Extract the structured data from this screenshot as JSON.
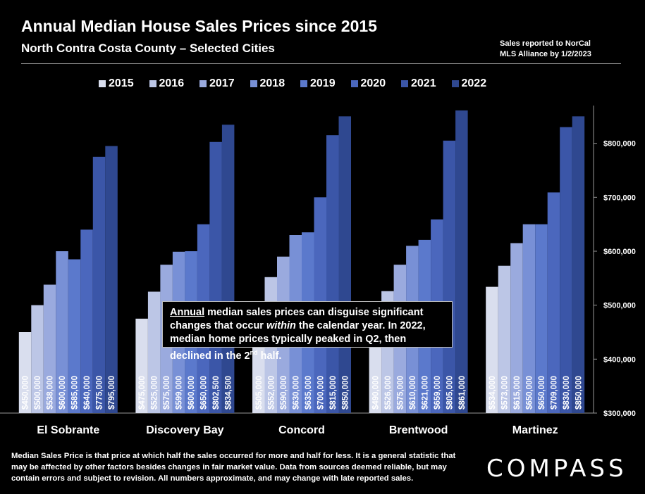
{
  "header": {
    "title": "Annual Median House Sales Prices since 2015",
    "subtitle": "North Contra Costa County – Selected Cities",
    "source_line1": "Sales reported to NorCal",
    "source_line2": "MLS Alliance by 1/2/2023"
  },
  "callout": {
    "word_annual": "Annual",
    "part1": " median sales prices can disguise significant changes that occur ",
    "word_within": "within",
    "part2": " the calendar year. In 2022, median home prices typically peaked in Q2, then declined in the 2",
    "sup": "nd",
    "part3": " half."
  },
  "footnote": "Median Sales Price is that price at which half the sales occurred for more and half for less. It is a general statistic that may be affected by other factors besides changes in fair market value. Data from sources deemed reliable, but may contain errors and subject to revision.  All numbers approximate, and may change with late reported sales.",
  "logo": "COMPASS",
  "chart_data": {
    "type": "bar",
    "categories": [
      "El Sobrante",
      "Discovery Bay",
      "Concord",
      "Brentwood",
      "Martinez"
    ],
    "series": [
      {
        "name": "2015",
        "color": "#d9deee",
        "values": [
          450000,
          475000,
          505000,
          490000,
          534000
        ],
        "labels": [
          "$450,000",
          "$475,000",
          "$505,000",
          "$490,000",
          "$534,000"
        ]
      },
      {
        "name": "2016",
        "color": "#bcc6e6",
        "values": [
          500000,
          525000,
          552000,
          526000,
          573000
        ],
        "labels": [
          "$500,000",
          "$525,000",
          "$552,000",
          "$526,000",
          "$573,000"
        ]
      },
      {
        "name": "2017",
        "color": "#9aaade",
        "values": [
          538000,
          575000,
          590000,
          575000,
          615000
        ],
        "labels": [
          "$538,000",
          "$575,000",
          "$590,000",
          "$575,000",
          "$615,000"
        ]
      },
      {
        "name": "2018",
        "color": "#7890d6",
        "values": [
          600000,
          599000,
          630000,
          610000,
          650000
        ],
        "labels": [
          "$600,000",
          "$599,000",
          "$630,000",
          "$610,000",
          "$650,000"
        ]
      },
      {
        "name": "2019",
        "color": "#5b79cc",
        "values": [
          585000,
          600000,
          635000,
          621000,
          650000
        ],
        "labels": [
          "$585,000",
          "$600,000",
          "$635,000",
          "$621,000",
          "$650,000"
        ]
      },
      {
        "name": "2020",
        "color": "#4b67bd",
        "values": [
          640000,
          650000,
          700000,
          659000,
          709000
        ],
        "labels": [
          "$640,000",
          "$650,000",
          "$700,000",
          "$659,000",
          "$709,000"
        ]
      },
      {
        "name": "2021",
        "color": "#3b56a8",
        "values": [
          775000,
          802500,
          815000,
          805000,
          830000
        ],
        "labels": [
          "$775,000",
          "$802,500",
          "$815,000",
          "$805,000",
          "$830,000"
        ]
      },
      {
        "name": "2022",
        "color": "#2f4890",
        "values": [
          795000,
          834500,
          850000,
          861000,
          850000
        ],
        "labels": [
          "$795,000",
          "$834,500",
          "$850,000",
          "$861,000",
          "$850,000"
        ]
      }
    ],
    "ylim": [
      300000,
      870000
    ],
    "yticks": [
      300000,
      400000,
      500000,
      600000,
      700000,
      800000
    ],
    "ytick_labels": [
      "$300,000",
      "$400,000",
      "$500,000",
      "$600,000",
      "$700,000",
      "$800,000"
    ],
    "legend_position": "top-center",
    "grid": false
  }
}
